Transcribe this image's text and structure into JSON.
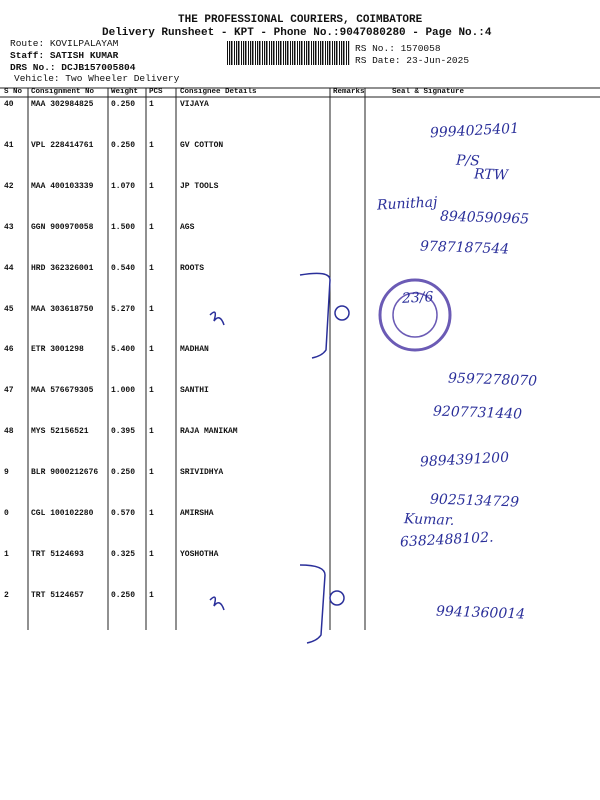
{
  "header": {
    "title": "THE PROFESSIONAL COURIERS, COIMBATORE",
    "subtitle": "Delivery Runsheet - KPT - Phone No.:9047080280 - Page No.:4",
    "route": "Route: KOVILPALAYAM",
    "staff": "Staff: SATISH KUMAR",
    "drs": "DRS No.: DCJB157005804",
    "vehicle": "Vehicle: Two Wheeler Delivery",
    "rs_no": "RS No.: 1570058",
    "rs_date": "RS Date: 23-Jun-2025"
  },
  "table": {
    "columns": [
      "S No",
      "Consignment No",
      "Weight",
      "PCS",
      "Consignee Details",
      "Remarks",
      "Seal & Signature"
    ],
    "rows": [
      [
        "40",
        "MAA 302984825",
        "0.250",
        "1",
        "VIJAYA"
      ],
      [
        "41",
        "VPL 228414761",
        "0.250",
        "1",
        "GV COTTON"
      ],
      [
        "42",
        "MAA 400103339",
        "1.070",
        "1",
        "JP TOOLS"
      ],
      [
        "43",
        "GGN 900970058",
        "1.500",
        "1",
        "AGS"
      ],
      [
        "44",
        "HRD 362326001",
        "0.540",
        "1",
        "ROOTS"
      ],
      [
        "45",
        "MAA 303618750",
        "5.270",
        "1",
        null
      ],
      [
        "46",
        "ETR 3001298",
        "5.400",
        "1",
        "MADHAN"
      ],
      [
        "47",
        "MAA 576679305",
        "1.000",
        "1",
        "SANTHI"
      ],
      [
        "48",
        "MYS 52156521",
        "0.395",
        "1",
        "RAJA MANIKAM"
      ],
      [
        "9",
        "BLR 9000212676",
        "0.250",
        "1",
        "SRIVIDHYA"
      ],
      [
        "0",
        "CGL 100102280",
        "0.570",
        "1",
        "AMIRSHA"
      ],
      [
        "1",
        "TRT 5124693",
        "0.325",
        "1",
        "YOSHOTHA"
      ],
      [
        "2",
        "TRT 5124657",
        "0.250",
        "1",
        null
      ]
    ]
  },
  "handwriting": [
    "9994025401",
    "P/S",
    "RTW",
    "Runithaj",
    "8940590965",
    "9787187544",
    "23/6",
    "9597278070",
    "9207731440",
    "9894391200",
    "9025134729",
    "Kumar.",
    "6382488102.",
    "9941360014"
  ]
}
